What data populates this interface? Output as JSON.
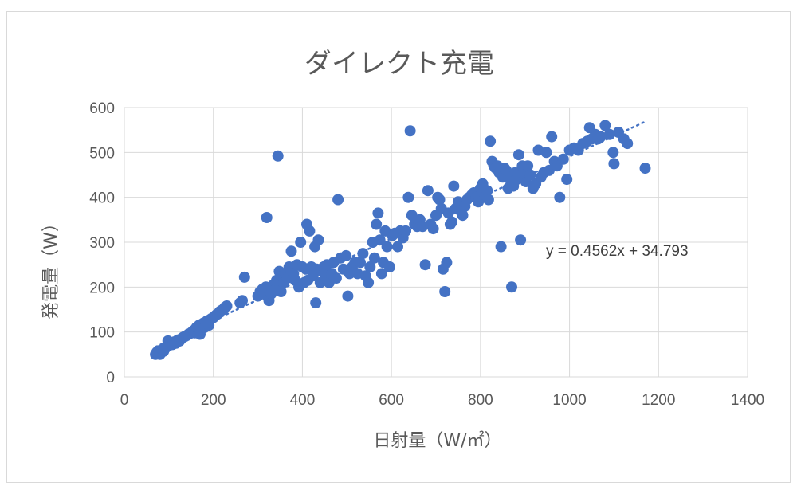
{
  "chart_data": {
    "type": "scatter",
    "title": "ダイレクト充電",
    "xlabel": "日射量（W/㎡）",
    "ylabel": "発電量（W）",
    "xlim": [
      0,
      1400
    ],
    "ylim": [
      0,
      600
    ],
    "x_ticks": [
      "0",
      "200",
      "400",
      "600",
      "800",
      "1000",
      "1200",
      "1400"
    ],
    "y_ticks": [
      "0",
      "100",
      "200",
      "300",
      "400",
      "500",
      "600"
    ],
    "grid": true,
    "marker_color": "#4472C4",
    "trendline": {
      "type": "linear",
      "slope": 0.4562,
      "intercept": 34.793,
      "label": "y = 0.4562x + 34.793",
      "style": "dotted"
    },
    "points": [
      [
        70,
        50
      ],
      [
        73,
        55
      ],
      [
        76,
        52
      ],
      [
        78,
        58
      ],
      [
        80,
        50
      ],
      [
        82,
        55
      ],
      [
        85,
        60
      ],
      [
        88,
        57
      ],
      [
        90,
        62
      ],
      [
        93,
        65
      ],
      [
        96,
        68
      ],
      [
        100,
        70
      ],
      [
        98,
        80
      ],
      [
        104,
        75
      ],
      [
        108,
        72
      ],
      [
        112,
        78
      ],
      [
        116,
        75
      ],
      [
        120,
        82
      ],
      [
        124,
        80
      ],
      [
        128,
        85
      ],
      [
        132,
        88
      ],
      [
        136,
        90
      ],
      [
        140,
        92
      ],
      [
        144,
        95
      ],
      [
        148,
        97
      ],
      [
        152,
        100
      ],
      [
        155,
        103
      ],
      [
        158,
        98
      ],
      [
        160,
        105
      ],
      [
        162,
        110
      ],
      [
        165,
        108
      ],
      [
        168,
        115
      ],
      [
        170,
        95
      ],
      [
        172,
        112
      ],
      [
        175,
        118
      ],
      [
        178,
        120
      ],
      [
        180,
        110
      ],
      [
        183,
        122
      ],
      [
        186,
        125
      ],
      [
        190,
        115
      ],
      [
        193,
        128
      ],
      [
        196,
        130
      ],
      [
        200,
        132
      ],
      [
        203,
        135
      ],
      [
        206,
        138
      ],
      [
        210,
        140
      ],
      [
        214,
        145
      ],
      [
        218,
        148
      ],
      [
        222,
        150
      ],
      [
        226,
        155
      ],
      [
        230,
        158
      ],
      [
        260,
        165
      ],
      [
        265,
        170
      ],
      [
        270,
        222
      ],
      [
        300,
        180
      ],
      [
        305,
        190
      ],
      [
        310,
        195
      ],
      [
        315,
        185
      ],
      [
        318,
        200
      ],
      [
        320,
        355
      ],
      [
        322,
        178
      ],
      [
        325,
        170
      ],
      [
        330,
        185
      ],
      [
        335,
        205
      ],
      [
        340,
        195
      ],
      [
        342,
        215
      ],
      [
        345,
        492
      ],
      [
        348,
        235
      ],
      [
        352,
        190
      ],
      [
        355,
        225
      ],
      [
        358,
        210
      ],
      [
        362,
        230
      ],
      [
        366,
        220
      ],
      [
        370,
        245
      ],
      [
        375,
        280
      ],
      [
        380,
        230
      ],
      [
        384,
        215
      ],
      [
        388,
        250
      ],
      [
        392,
        200
      ],
      [
        396,
        300
      ],
      [
        400,
        245
      ],
      [
        404,
        210
      ],
      [
        408,
        240
      ],
      [
        410,
        340
      ],
      [
        412,
        215
      ],
      [
        416,
        325
      ],
      [
        420,
        245
      ],
      [
        424,
        225
      ],
      [
        428,
        290
      ],
      [
        430,
        165
      ],
      [
        432,
        240
      ],
      [
        436,
        305
      ],
      [
        440,
        210
      ],
      [
        444,
        235
      ],
      [
        448,
        245
      ],
      [
        452,
        220
      ],
      [
        455,
        250
      ],
      [
        460,
        210
      ],
      [
        466,
        230
      ],
      [
        470,
        255
      ],
      [
        476,
        220
      ],
      [
        480,
        395
      ],
      [
        486,
        265
      ],
      [
        492,
        240
      ],
      [
        498,
        270
      ],
      [
        502,
        180
      ],
      [
        506,
        230
      ],
      [
        512,
        245
      ],
      [
        518,
        255
      ],
      [
        524,
        230
      ],
      [
        530,
        255
      ],
      [
        536,
        275
      ],
      [
        542,
        225
      ],
      [
        548,
        210
      ],
      [
        552,
        245
      ],
      [
        558,
        300
      ],
      [
        562,
        265
      ],
      [
        566,
        340
      ],
      [
        570,
        365
      ],
      [
        574,
        305
      ],
      [
        578,
        230
      ],
      [
        582,
        255
      ],
      [
        586,
        325
      ],
      [
        590,
        290
      ],
      [
        596,
        245
      ],
      [
        602,
        315
      ],
      [
        608,
        320
      ],
      [
        614,
        290
      ],
      [
        620,
        325
      ],
      [
        626,
        310
      ],
      [
        632,
        325
      ],
      [
        638,
        400
      ],
      [
        642,
        548
      ],
      [
        646,
        360
      ],
      [
        652,
        340
      ],
      [
        658,
        335
      ],
      [
        664,
        350
      ],
      [
        670,
        335
      ],
      [
        676,
        250
      ],
      [
        682,
        415
      ],
      [
        688,
        340
      ],
      [
        694,
        330
      ],
      [
        700,
        360
      ],
      [
        704,
        400
      ],
      [
        708,
        395
      ],
      [
        712,
        375
      ],
      [
        716,
        240
      ],
      [
        720,
        190
      ],
      [
        724,
        255
      ],
      [
        728,
        365
      ],
      [
        732,
        340
      ],
      [
        736,
        345
      ],
      [
        740,
        425
      ],
      [
        744,
        375
      ],
      [
        750,
        390
      ],
      [
        755,
        370
      ],
      [
        760,
        360
      ],
      [
        765,
        380
      ],
      [
        770,
        395
      ],
      [
        775,
        400
      ],
      [
        780,
        405
      ],
      [
        785,
        410
      ],
      [
        790,
        400
      ],
      [
        795,
        390
      ],
      [
        800,
        420
      ],
      [
        805,
        430
      ],
      [
        810,
        405
      ],
      [
        815,
        415
      ],
      [
        818,
        395
      ],
      [
        822,
        525
      ],
      [
        826,
        480
      ],
      [
        830,
        470
      ],
      [
        834,
        465
      ],
      [
        838,
        470
      ],
      [
        842,
        455
      ],
      [
        846,
        290
      ],
      [
        850,
        445
      ],
      [
        854,
        465
      ],
      [
        858,
        460
      ],
      [
        862,
        420
      ],
      [
        866,
        440
      ],
      [
        870,
        200
      ],
      [
        874,
        425
      ],
      [
        878,
        455
      ],
      [
        882,
        440
      ],
      [
        886,
        495
      ],
      [
        890,
        305
      ],
      [
        894,
        470
      ],
      [
        898,
        450
      ],
      [
        902,
        435
      ],
      [
        906,
        470
      ],
      [
        912,
        450
      ],
      [
        918,
        420
      ],
      [
        924,
        430
      ],
      [
        930,
        505
      ],
      [
        936,
        445
      ],
      [
        942,
        455
      ],
      [
        948,
        500
      ],
      [
        954,
        460
      ],
      [
        960,
        535
      ],
      [
        966,
        480
      ],
      [
        972,
        470
      ],
      [
        978,
        400
      ],
      [
        986,
        485
      ],
      [
        994,
        440
      ],
      [
        1000,
        505
      ],
      [
        1010,
        510
      ],
      [
        1020,
        505
      ],
      [
        1030,
        520
      ],
      [
        1040,
        525
      ],
      [
        1045,
        555
      ],
      [
        1050,
        530
      ],
      [
        1058,
        540
      ],
      [
        1064,
        530
      ],
      [
        1070,
        535
      ],
      [
        1080,
        560
      ],
      [
        1090,
        540
      ],
      [
        1098,
        500
      ],
      [
        1100,
        475
      ],
      [
        1110,
        545
      ],
      [
        1122,
        530
      ],
      [
        1130,
        520
      ],
      [
        1170,
        465
      ]
    ]
  }
}
